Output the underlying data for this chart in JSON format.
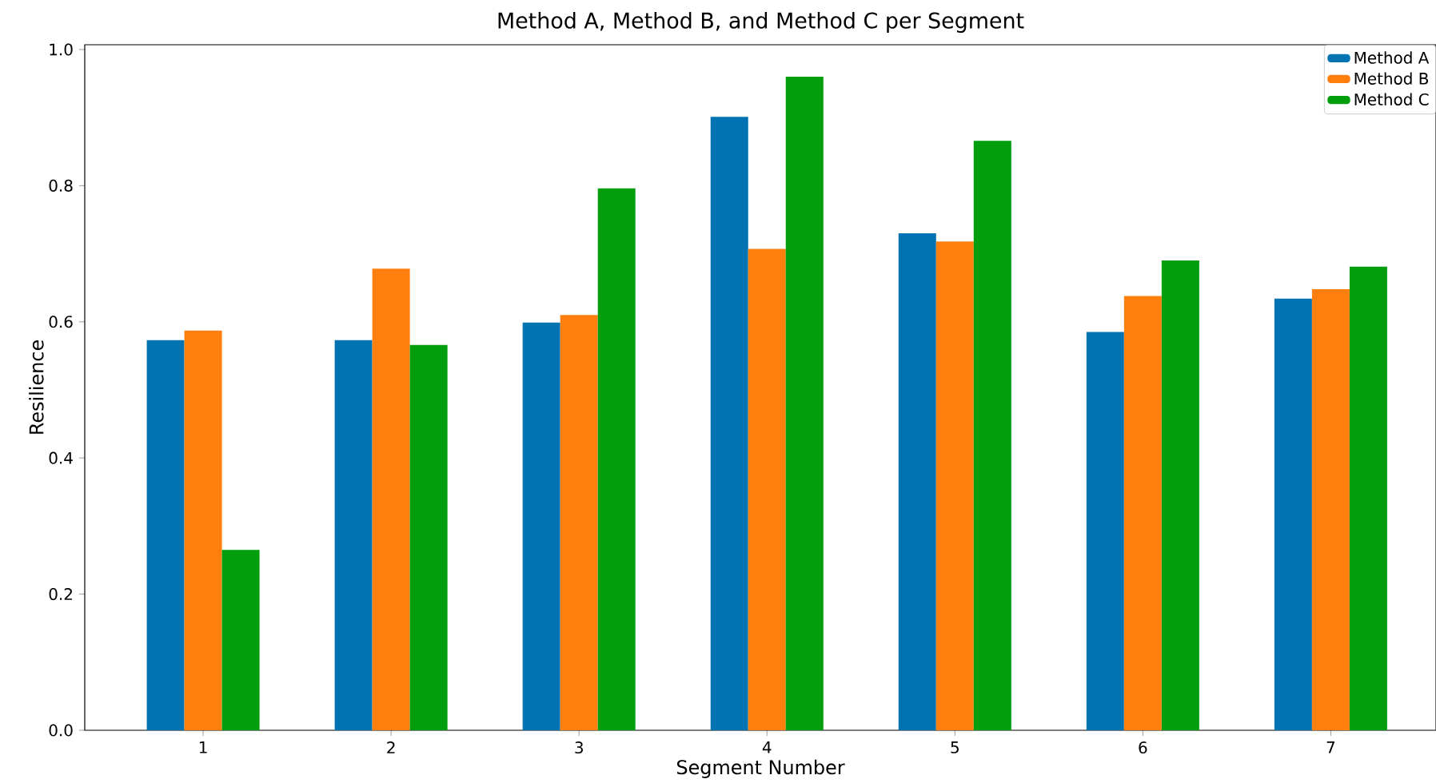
{
  "chart_data": {
    "type": "bar",
    "title": "Method A, Method B, and Method C per Segment",
    "xlabel": "Segment Number",
    "ylabel": "Resilience",
    "categories": [
      "1",
      "2",
      "3",
      "4",
      "5",
      "6",
      "7"
    ],
    "series": [
      {
        "name": "Method A",
        "color": "#0173b2",
        "values": [
          0.573,
          0.573,
          0.599,
          0.901,
          0.73,
          0.585,
          0.634
        ]
      },
      {
        "name": "Method B",
        "color": "#ff7f0e",
        "values": [
          0.587,
          0.678,
          0.61,
          0.707,
          0.718,
          0.638,
          0.648
        ]
      },
      {
        "name": "Method C",
        "color": "#029e0e",
        "values": [
          0.265,
          0.566,
          0.796,
          0.96,
          0.866,
          0.69,
          0.681
        ]
      }
    ],
    "ylim": [
      0,
      1.007
    ],
    "yticks": [
      {
        "value": 0,
        "label": "0.0"
      },
      {
        "value": 0.2,
        "label": "0.2"
      },
      {
        "value": 0.4,
        "label": "0.4"
      },
      {
        "value": 0.6,
        "label": "0.6"
      },
      {
        "value": 0.8,
        "label": "0.8"
      },
      {
        "value": 1.0,
        "label": "1.0"
      }
    ],
    "legend": "top right"
  }
}
